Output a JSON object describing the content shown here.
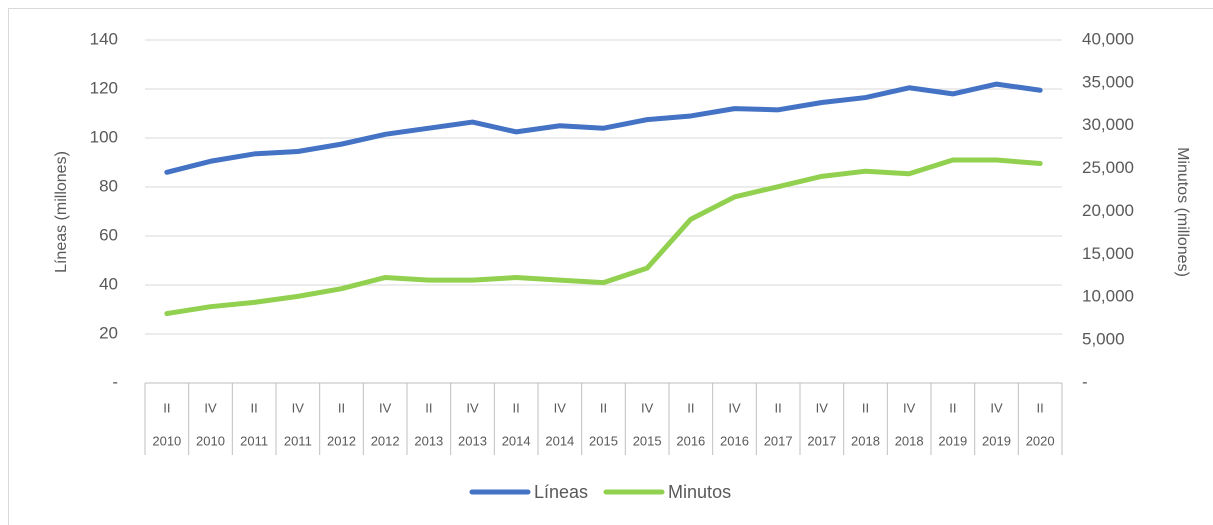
{
  "chart_data": {
    "type": "line",
    "categories": [
      [
        "II",
        "2010"
      ],
      [
        "IV",
        "2010"
      ],
      [
        "II",
        "2011"
      ],
      [
        "IV",
        "2011"
      ],
      [
        "II",
        "2012"
      ],
      [
        "IV",
        "2012"
      ],
      [
        "II",
        "2013"
      ],
      [
        "IV",
        "2013"
      ],
      [
        "II",
        "2014"
      ],
      [
        "IV",
        "2014"
      ],
      [
        "II",
        "2015"
      ],
      [
        "IV",
        "2015"
      ],
      [
        "II",
        "2016"
      ],
      [
        "IV",
        "2016"
      ],
      [
        "II",
        "2017"
      ],
      [
        "IV",
        "2017"
      ],
      [
        "II",
        "2018"
      ],
      [
        "IV",
        "2018"
      ],
      [
        "II",
        "2019"
      ],
      [
        "IV",
        "2019"
      ],
      [
        "II",
        "2020"
      ]
    ],
    "series": [
      {
        "name": "Líneas",
        "color": "#4472c4",
        "values": [
          86,
          90.5,
          93.5,
          94.5,
          97.5,
          101.5,
          104,
          106.5,
          102.5,
          105,
          104,
          107.5,
          109,
          112,
          111.5,
          114.5,
          116.5,
          120.5,
          118,
          122,
          119.5
        ]
      },
      {
        "name": "Minutos",
        "color": "#92d050",
        "axis": "y2",
        "values": [
          8100,
          8900,
          9400,
          10100,
          11000,
          12300,
          12000,
          12000,
          12300,
          12000,
          11700,
          13400,
          19100,
          21700,
          22900,
          24100,
          24700,
          24400,
          26000,
          26000,
          25600
        ]
      }
    ],
    "ylabel": "Líneas (millones)",
    "y2label": "Minutos (millones)",
    "ylim": [
      0,
      140
    ],
    "yticks": [
      {
        "value": 0,
        "label": "-"
      },
      20,
      40,
      60,
      80,
      100,
      120,
      140
    ],
    "y2lim": [
      0,
      40000
    ],
    "y2ticks": [
      {
        "value": 0,
        "label": "-"
      },
      {
        "value": 5000,
        "label": "5,000"
      },
      {
        "value": 10000,
        "label": "10,000"
      },
      {
        "value": 15000,
        "label": "15,000"
      },
      {
        "value": 20000,
        "label": "20,000"
      },
      {
        "value": 25000,
        "label": "25,000"
      },
      {
        "value": 30000,
        "label": "30,000"
      },
      {
        "value": 35000,
        "label": "35,000"
      },
      {
        "value": 40000,
        "label": "40,000"
      }
    ],
    "grid": true,
    "legend": "bottom"
  }
}
